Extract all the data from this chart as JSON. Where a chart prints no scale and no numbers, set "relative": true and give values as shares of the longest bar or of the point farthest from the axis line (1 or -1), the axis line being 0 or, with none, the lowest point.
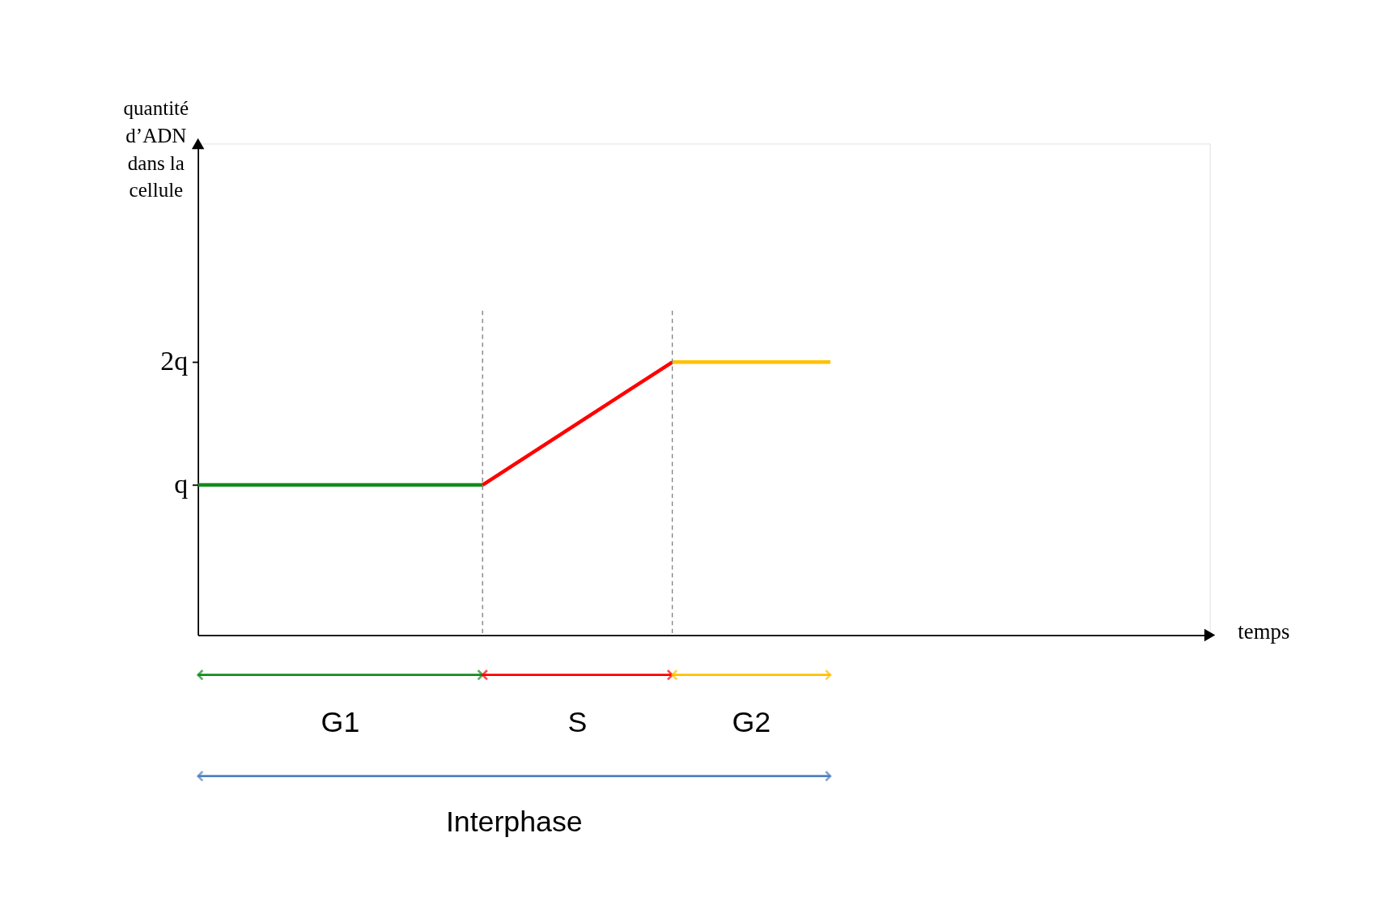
{
  "chart_data": {
    "type": "line",
    "relative": true,
    "xlabel": "temps",
    "categories": [
      null,
      null,
      null,
      null,
      null,
      null,
      null,
      null,
      null,
      null,
      null,
      null,
      null,
      null,
      null,
      null,
      null,
      null,
      null,
      null,
      null,
      null,
      null,
      null,
      null,
      null,
      null,
      null,
      null,
      null,
      null,
      null,
      null
    ],
    "grid": false,
    "series": [
      {
        "color": "#128c1c",
        "values": [
          0.55,
          null,
          null,
          null,
          null,
          null,
          null,
          null,
          null,
          0.55,
          null,
          null,
          null,
          null,
          null,
          null,
          null,
          null,
          null,
          null,
          null,
          null,
          null,
          null,
          null,
          null,
          null,
          null,
          null,
          null,
          null,
          null,
          null
        ]
      },
      {
        "color": "#ff0000",
        "values": [
          null,
          null,
          null,
          null,
          null,
          null,
          null,
          null,
          null,
          0.55,
          null,
          null,
          null,
          null,
          null,
          1,
          null,
          null,
          null,
          null,
          null,
          null,
          null,
          null,
          null,
          null,
          null,
          null,
          null,
          null,
          null,
          null,
          null
        ]
      },
      {
        "color": "#ffc000",
        "values": [
          null,
          null,
          null,
          null,
          null,
          null,
          null,
          null,
          null,
          null,
          null,
          null,
          null,
          null,
          null,
          1,
          null,
          null,
          null,
          null,
          1,
          null,
          null,
          null,
          null,
          null,
          null,
          null,
          null,
          null,
          null,
          null,
          null
        ]
      }
    ],
    "annotations": [
      "quantité d’ADN dans la cellule",
      "q",
      "2q",
      "G1",
      "S",
      "G2",
      "Interphase"
    ]
  }
}
